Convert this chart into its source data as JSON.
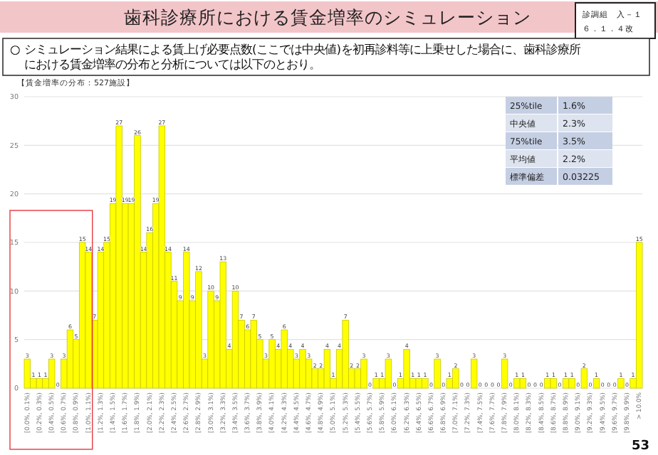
{
  "chart_data": {
    "type": "bar",
    "title": "歯科診療所における賃金増率のシミュレーション",
    "subtitle": "○ シミュレーション結果による賃上げ必要点数(ここでは中央値)を初再診料等に上乗せした場合に、歯科診療所における賃金増率の分布と分析については以下のとおり。",
    "annotations": [
      "診調組　入－１",
      "６．１．４改",
      "【賃金増率の分布：527施設】",
      "25%tile",
      "1.6%",
      "中央値",
      "2.3%",
      "75%tile",
      "3.5%",
      "平均値",
      "2.2%",
      "標準偏差",
      "0.03225",
      "53"
    ],
    "categories": [
      "[0.0%, 0.1%)",
      null,
      "[0.2%, 0.3%)",
      null,
      "[0.4%, 0.5%)",
      null,
      "[0.6%, 0.7%)",
      null,
      "[0.8%, 0.9%)",
      null,
      "[1.0%, 1.1%)",
      null,
      "[1.2%, 1.3%)",
      null,
      "[1.4%, 1.5%)",
      null,
      "[1.6%, 1.7%)",
      null,
      "[1.8%, 1.9%)",
      null,
      "[2.0%, 2.1%)",
      null,
      "[2.2%, 2.3%)",
      null,
      "[2.4%, 2.5%)",
      null,
      "[2.6%, 2.7%)",
      null,
      "[2.8%, 2.9%)",
      null,
      "[3.0%, 3.1%)",
      null,
      "[3.2%, 3.3%)",
      null,
      "[3.4%, 3.5%)",
      null,
      "[3.6%, 3.7%)",
      null,
      "[3.8%, 3.9%)",
      null,
      "[4.0%, 4.1%)",
      null,
      "[4.2%, 4.3%)",
      null,
      "[4.4%, 4.5%)",
      null,
      "[4.6%, 4.7%)",
      null,
      "[4.8%, 4.9%)",
      null,
      "[5.0%, 5.1%)",
      null,
      "[5.2%, 5.3%)",
      null,
      "[5.4%, 5.5%)",
      null,
      "[5.6%, 5.7%)",
      null,
      "[5.8%, 5.9%)",
      null,
      "[6.0%, 6.1%)",
      null,
      "[6.2%, 6.3%)",
      null,
      "[6.4%, 6.5%)",
      null,
      "[6.6%, 6.7%)",
      null,
      "[6.8%, 6.9%)",
      null,
      "[7.0%, 7.1%)",
      null,
      "[7.2%, 7.3%)",
      null,
      "[7.4%, 7.5%)",
      null,
      "[7.6%, 7.7%)",
      null,
      "[7.8%, 7.9%)",
      null,
      "[8.0%, 8.1%)",
      null,
      "[8.2%, 8.3%)",
      null,
      "[8.4%, 8.5%)",
      null,
      "[8.6%, 8.7%)",
      null,
      "[8.8%, 8.9%)",
      null,
      "[9.0%, 9.1%)",
      null,
      "[9.2%, 9.3%)",
      null,
      "[9.4%, 9.5%)",
      null,
      "[9.6%, 9.7%)",
      null,
      "[9.8%, 9.9%)",
      null,
      "> 10.0%"
    ],
    "values": [
      3,
      1,
      1,
      1,
      3,
      0,
      3,
      6,
      5,
      15,
      14,
      7,
      14,
      15,
      19,
      27,
      19,
      19,
      26,
      14,
      16,
      19,
      27,
      14,
      11,
      9,
      14,
      9,
      12,
      3,
      10,
      9,
      13,
      4,
      10,
      7,
      6,
      7,
      5,
      3,
      5,
      4,
      6,
      4,
      3,
      4,
      3,
      2,
      2,
      4,
      1,
      4,
      7,
      2,
      2,
      3,
      0,
      1,
      1,
      3,
      0,
      1,
      4,
      1,
      1,
      1,
      0,
      3,
      0,
      1,
      2,
      0,
      0,
      3,
      0,
      0,
      0,
      0,
      3,
      0,
      1,
      1,
      0,
      0,
      0,
      1,
      1,
      0,
      1,
      1,
      0,
      2,
      0,
      1,
      0,
      0,
      0,
      1,
      0,
      1,
      15
    ],
    "color": "#ffff00",
    "data_labels": true,
    "ylim": [
      0,
      30
    ],
    "yticks": [
      0,
      5,
      10,
      15,
      20,
      25,
      30
    ],
    "grid": "y"
  }
}
